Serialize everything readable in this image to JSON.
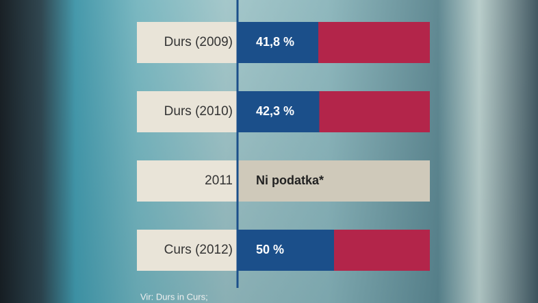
{
  "chart_data": {
    "type": "hbar",
    "categories": [
      "Durs (2009)",
      "Durs (2010)",
      "2011",
      "Curs (2012)"
    ],
    "values": [
      41.8,
      42.3,
      null,
      50
    ],
    "value_labels": [
      "41,8 %",
      "42,3 %",
      "Ni podatka*",
      "50 %"
    ],
    "color": "#1b4f8a",
    "xlim": [
      0,
      100
    ],
    "source": "Vir: Durs in Curs;"
  }
}
